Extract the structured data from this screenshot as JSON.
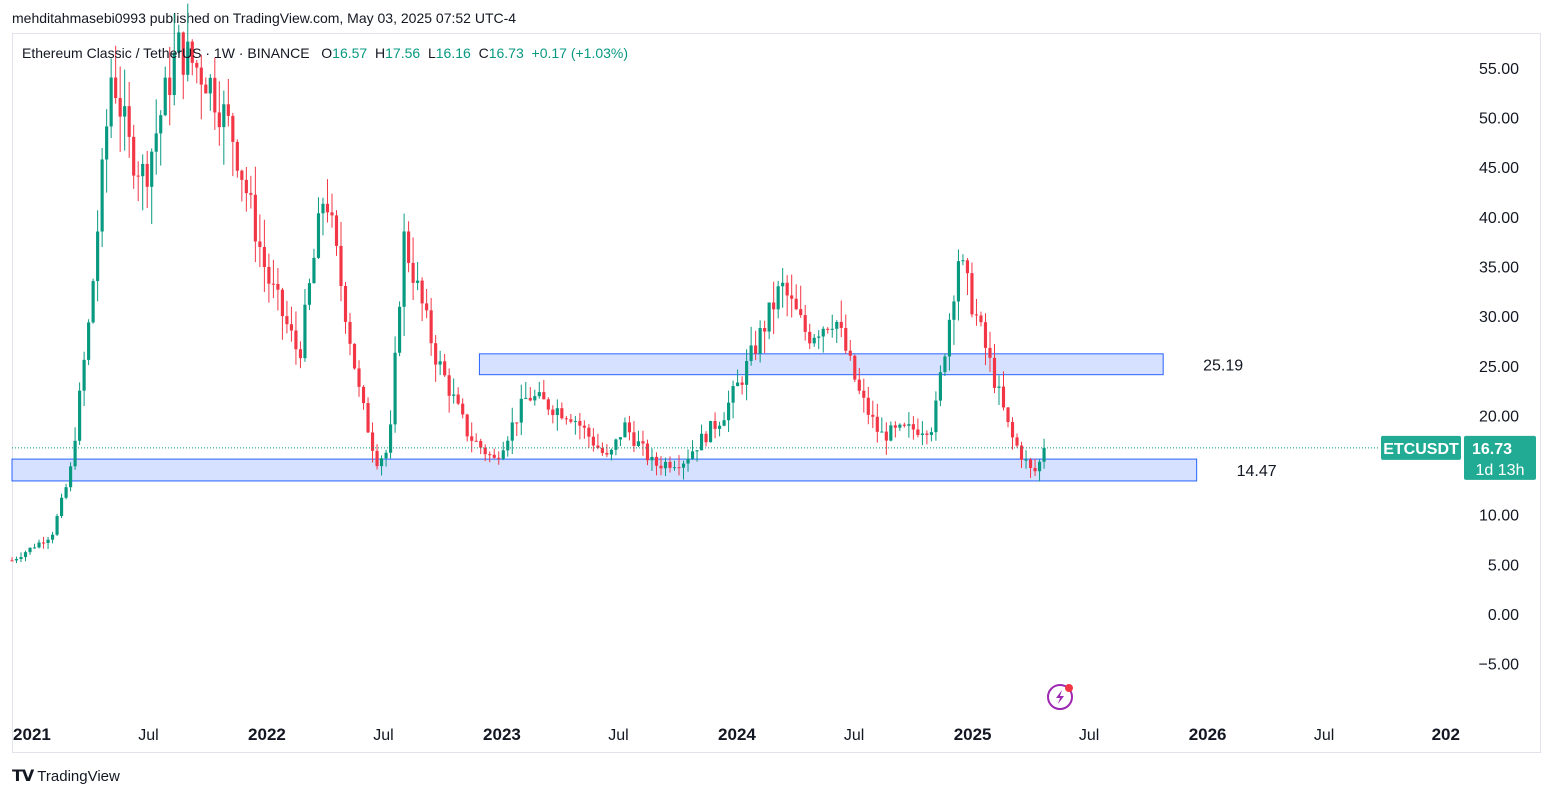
{
  "header": {
    "publisher_line": "mehditahmasebi0993 published on TradingView.com, May 03, 2025 07:52 UTC-4"
  },
  "legend": {
    "symbol": "Ethereum Classic / TetherUS · 1W · BINANCE",
    "o_label": "O",
    "o_value": "16.57",
    "h_label": "H",
    "h_value": "17.56",
    "l_label": "L",
    "l_value": "16.16",
    "c_label": "C",
    "c_value": "16.73",
    "change": "+0.17 (+1.03%)"
  },
  "price_badge": {
    "ticker": "ETCUSDT",
    "price": "16.73",
    "timer": "1d 13h"
  },
  "footer": {
    "brand": "TradingView"
  },
  "colors": {
    "up": "#089981",
    "down": "#f23645",
    "zone_fill": "#cfdcff",
    "zone_border": "#2962ff",
    "badge": "#22ab94"
  },
  "chart_data": {
    "type": "candlestick",
    "symbol": "ETCUSDT",
    "interval": "1W",
    "ylim": [
      -8.5,
      60
    ],
    "y_ticks": [
      55,
      50,
      45,
      40,
      35,
      30,
      25,
      20,
      10,
      5,
      0,
      -5
    ],
    "y_tick_labels": [
      "55.00",
      "50.00",
      "45.00",
      "40.00",
      "35.00",
      "30.00",
      "25.00",
      "20.00",
      "10.00",
      "5.00",
      "0.00",
      "−5.00"
    ],
    "x_ticks": [
      "2021",
      "Jul",
      "2022",
      "Jul",
      "2023",
      "Jul",
      "2024",
      "Jul",
      "2025",
      "Jul",
      "2026",
      "Jul",
      "202"
    ],
    "x_tick_dates": [
      "2021-01-01",
      "2021-07-01",
      "2022-01-01",
      "2022-07-01",
      "2023-01-01",
      "2023-07-01",
      "2024-01-01",
      "2024-07-01",
      "2025-01-01",
      "2025-07-01",
      "2026-01-01",
      "2026-07-01",
      "2027-01-01"
    ],
    "x_tick_bold": [
      true,
      false,
      true,
      false,
      true,
      false,
      true,
      false,
      true,
      false,
      true,
      false,
      true
    ],
    "last_price": 16.73,
    "zones": [
      {
        "label": "25.19",
        "from": "2022-11-27",
        "to": "2025-10-24",
        "low": 24.1,
        "high": 26.2
      },
      {
        "label": "14.47",
        "from": "2020-12-01",
        "to": "2025-12-15",
        "low": 13.4,
        "high": 15.6
      }
    ],
    "anchors": [
      [
        "2020-12-01",
        5.4
      ],
      [
        "2021-02-01",
        8.0
      ],
      [
        "2021-03-01",
        14.0
      ],
      [
        "2021-04-01",
        30.0
      ],
      [
        "2021-05-05",
        55.0
      ],
      [
        "2021-06-01",
        47.0
      ],
      [
        "2021-06-25",
        44.0
      ],
      [
        "2021-08-15",
        57.0
      ],
      [
        "2021-10-01",
        54.0
      ],
      [
        "2021-11-10",
        48.0
      ],
      [
        "2022-01-01",
        34.0
      ],
      [
        "2022-02-20",
        26.0
      ],
      [
        "2022-04-01",
        43.0
      ],
      [
        "2022-05-25",
        22.0
      ],
      [
        "2022-06-20",
        15.5
      ],
      [
        "2022-07-10",
        16.5
      ],
      [
        "2022-08-01",
        38.0
      ],
      [
        "2022-09-20",
        26.0
      ],
      [
        "2022-11-10",
        18.0
      ],
      [
        "2022-12-20",
        15.5
      ],
      [
        "2023-02-10",
        22.0
      ],
      [
        "2023-04-20",
        20.0
      ],
      [
        "2023-06-15",
        15.5
      ],
      [
        "2023-07-10",
        19.0
      ],
      [
        "2023-08-25",
        15.0
      ],
      [
        "2023-10-10",
        15.5
      ],
      [
        "2023-12-10",
        20.0
      ],
      [
        "2024-01-10",
        24.0
      ],
      [
        "2024-03-10",
        33.0
      ],
      [
        "2024-04-20",
        28.0
      ],
      [
        "2024-06-01",
        30.0
      ],
      [
        "2024-07-10",
        22.0
      ],
      [
        "2024-08-10",
        18.0
      ],
      [
        "2024-11-01",
        19.0
      ],
      [
        "2024-12-10",
        36.0
      ],
      [
        "2025-01-20",
        27.0
      ],
      [
        "2025-03-01",
        18.0
      ],
      [
        "2025-04-05",
        14.0
      ],
      [
        "2025-04-27",
        16.73
      ]
    ]
  }
}
